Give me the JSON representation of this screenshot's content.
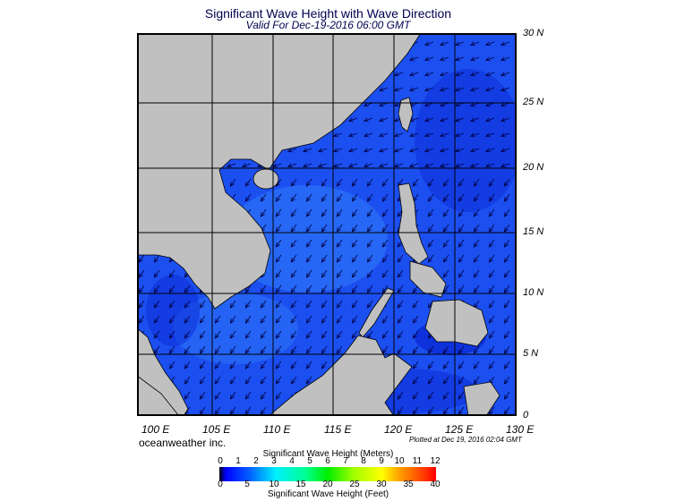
{
  "header": {
    "title": "Significant Wave Height with Wave Direction",
    "subtitle": "Valid For Dec-19-2016 06:00 GMT"
  },
  "map": {
    "lat_labels": [
      "30 N",
      "25 N",
      "20 N",
      "15 N",
      "10 N",
      "5 N",
      "0"
    ],
    "lon_labels": [
      "100 E",
      "105 E",
      "110 E",
      "115 E",
      "120 E",
      "125 E",
      "130 E"
    ],
    "colors": {
      "ocean": "#1c4ff0",
      "ocean_light": "#2c72f6",
      "ocean_dark": "#0a2ad6",
      "land": "#c0c0c0",
      "arrow": "#000040"
    }
  },
  "footer": {
    "brand": "oceanweather inc.",
    "plotted": "Plotted at Dec 19, 2016 02:04 GMT"
  },
  "legend": {
    "meters_title": "Significant Wave Height (Meters)",
    "feet_title": "Significant Wave Height (Feet)",
    "meters_ticks": [
      "0",
      "1",
      "2",
      "3",
      "4",
      "5",
      "6",
      "7",
      "8",
      "9",
      "10",
      "11",
      "12"
    ],
    "feet_ticks": [
      "0",
      "5",
      "10",
      "15",
      "20",
      "25",
      "30",
      "35",
      "40"
    ]
  }
}
